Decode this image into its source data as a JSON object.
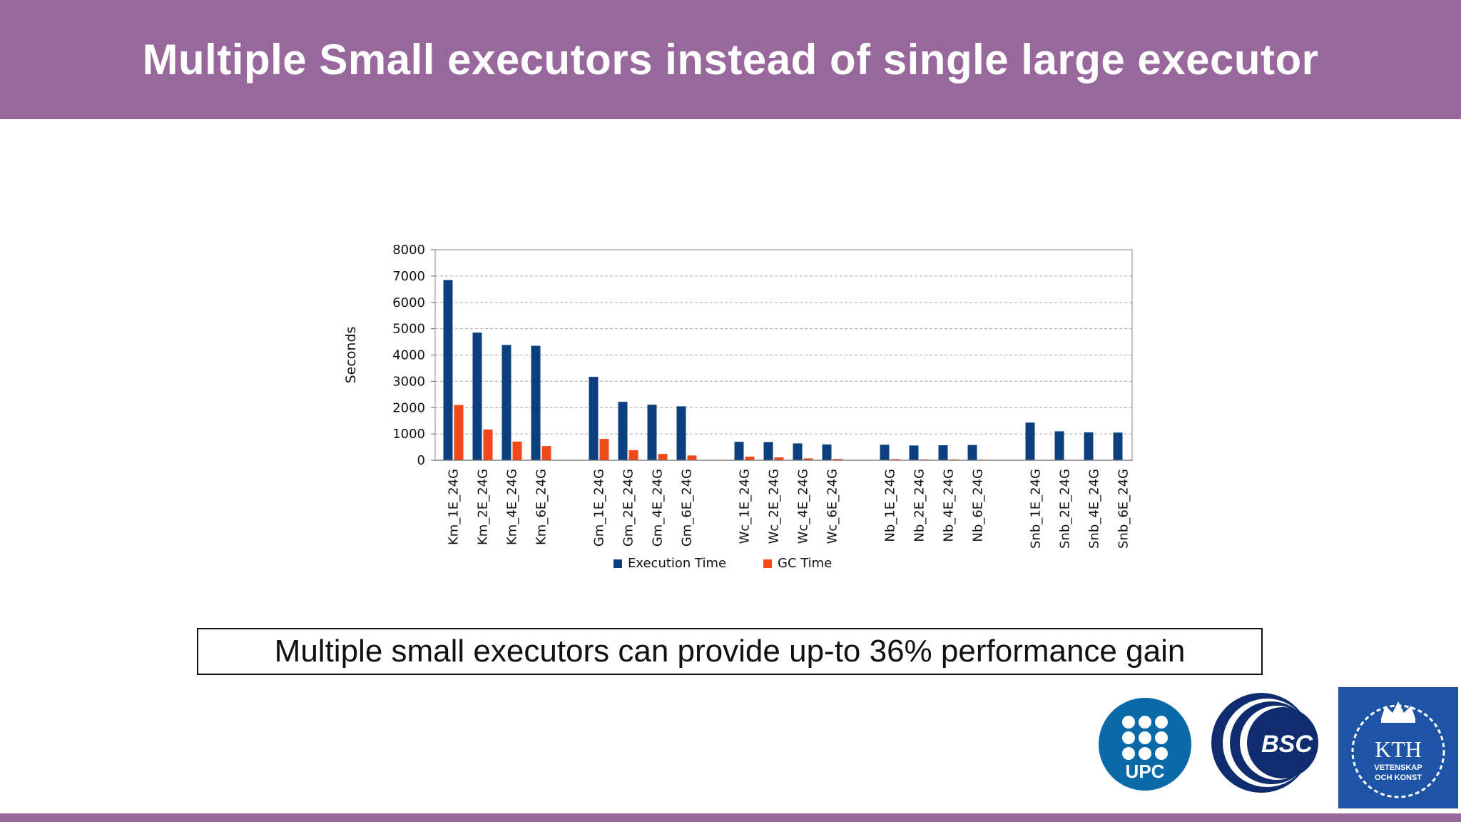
{
  "slide": {
    "title": "Multiple Small executors instead of single large executor",
    "callout": "Multiple small executors can provide up-to 36% performance gain"
  },
  "logos": {
    "upc_label": "UPC",
    "bsc_label": "BSC",
    "kth_label": "KTH",
    "kth_sub1": "VETENSKAP",
    "kth_sub2": "OCH KONST"
  },
  "colors": {
    "header": "#98679b",
    "execution": "#0b3f7d",
    "gc": "#f04a1b",
    "upc": "#0a6aa8",
    "bsc": "#0f2d6e",
    "kth": "#1d54a6"
  },
  "chart_data": {
    "type": "bar",
    "ylabel": "Seconds",
    "xlabel": "",
    "title": "",
    "ylim": [
      0,
      8000
    ],
    "yticks": [
      0,
      1000,
      2000,
      3000,
      4000,
      5000,
      6000,
      7000,
      8000
    ],
    "grid": true,
    "legend_position": "bottom",
    "groups": [
      [
        "Km_1E_24G",
        "Km_2E_24G",
        "Km_4E_24G",
        "Km_6E_24G"
      ],
      [
        "Gm_1E_24G",
        "Gm_2E_24G",
        "Gm_4E_24G",
        "Gm_6E_24G"
      ],
      [
        "Wc_1E_24G",
        "Wc_2E_24G",
        "Wc_4E_24G",
        "Wc_6E_24G"
      ],
      [
        "Nb_1E_24G",
        "Nb_2E_24G",
        "Nb_4E_24G",
        "Nb_6E_24G"
      ],
      [
        "Snb_1E_24G",
        "Snb_2E_24G",
        "Snb_4E_24G",
        "Snb_6E_24G"
      ]
    ],
    "series": [
      {
        "name": "Execution Time",
        "values": [
          6850,
          4850,
          4380,
          4350,
          3170,
          2220,
          2110,
          2050,
          700,
          690,
          640,
          600,
          590,
          560,
          570,
          580,
          1430,
          1100,
          1060,
          1050
        ]
      },
      {
        "name": "GC Time",
        "values": [
          2100,
          1170,
          710,
          540,
          810,
          380,
          240,
          180,
          140,
          110,
          70,
          50,
          40,
          30,
          30,
          20,
          10,
          10,
          10,
          10
        ]
      }
    ]
  }
}
